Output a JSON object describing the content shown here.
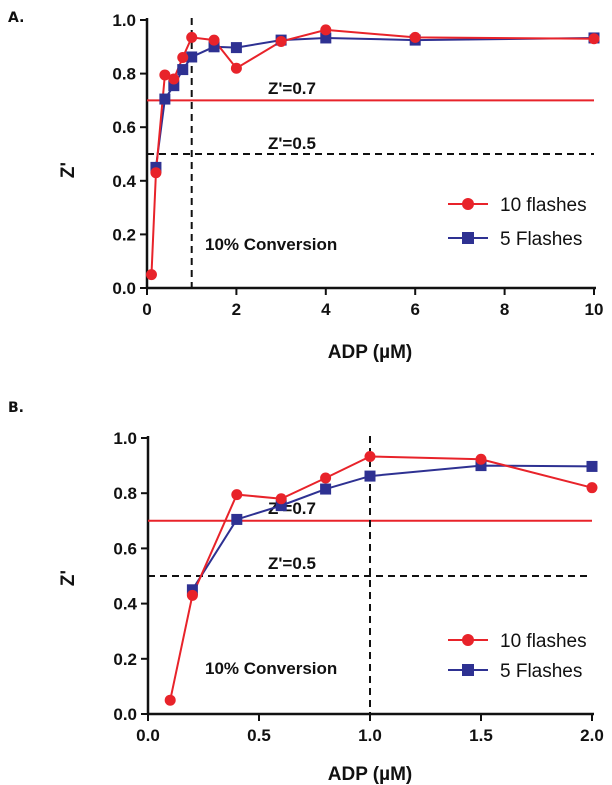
{
  "colors": {
    "series_red": "#e8232a",
    "series_blue": "#2e3192",
    "axis": "#111111",
    "dashed": "#111111"
  },
  "panels": [
    {
      "letter": "A."
    },
    {
      "letter": "B."
    }
  ],
  "chart_data": [
    {
      "type": "line",
      "panel": "A.",
      "xlabel": "ADP (µM)",
      "ylabel": "Z'",
      "xlim": [
        0,
        10
      ],
      "ylim": [
        0,
        1.0
      ],
      "x_ticks": [
        0,
        2,
        4,
        6,
        8,
        10
      ],
      "x_tick_labels": [
        "0",
        "2",
        "4",
        "6",
        "8",
        "10"
      ],
      "y_ticks": [
        0,
        0.2,
        0.4,
        0.6,
        0.8,
        1.0
      ],
      "y_tick_labels": [
        "0.0",
        "0.2",
        "0.4",
        "0.6",
        "0.8",
        "1.0"
      ],
      "grid": false,
      "legend_position": "right",
      "series": [
        {
          "name": "10 flashes",
          "marker": "circle",
          "x": [
            0.1,
            0.2,
            0.4,
            0.6,
            0.8,
            1.0,
            1.5,
            2.0,
            3.0,
            4.0,
            6.0,
            10.0
          ],
          "y": [
            0.05,
            0.43,
            0.795,
            0.78,
            0.86,
            0.935,
            0.925,
            0.82,
            0.92,
            0.963,
            0.935,
            0.93
          ]
        },
        {
          "name": "5 Flashes",
          "marker": "square",
          "x": [
            0.2,
            0.4,
            0.6,
            0.8,
            1.0,
            1.5,
            2.0,
            3.0,
            4.0,
            6.0,
            10.0
          ],
          "y": [
            0.45,
            0.705,
            0.755,
            0.815,
            0.862,
            0.9,
            0.897,
            0.925,
            0.933,
            0.925,
            0.933
          ]
        }
      ],
      "hlines": [
        {
          "y": 0.7,
          "label": "Z'=0.7",
          "style": "solid-red"
        },
        {
          "y": 0.5,
          "label": "Z'=0.5",
          "style": "dashed"
        }
      ],
      "vline": {
        "x": 1.0,
        "label": "10% Conversion",
        "style": "dashed"
      }
    },
    {
      "type": "line",
      "panel": "B.",
      "xlabel": "ADP (µM)",
      "ylabel": "Z'",
      "xlim": [
        0,
        2.0
      ],
      "ylim": [
        0,
        1.0
      ],
      "x_ticks": [
        0,
        0.5,
        1.0,
        1.5,
        2.0
      ],
      "x_tick_labels": [
        "0.0",
        "0.5",
        "1.0",
        "1.5",
        "2.0"
      ],
      "y_ticks": [
        0,
        0.2,
        0.4,
        0.6,
        0.8,
        1.0
      ],
      "y_tick_labels": [
        "0.0",
        "0.2",
        "0.4",
        "0.6",
        "0.8",
        "1.0"
      ],
      "grid": false,
      "legend_position": "bottom-right",
      "series": [
        {
          "name": "10 flashes",
          "marker": "circle",
          "x": [
            0.1,
            0.2,
            0.4,
            0.6,
            0.8,
            1.0,
            1.5,
            2.0
          ],
          "y": [
            0.05,
            0.43,
            0.795,
            0.78,
            0.855,
            0.933,
            0.923,
            0.82
          ]
        },
        {
          "name": "5 Flashes",
          "marker": "square",
          "x": [
            0.2,
            0.4,
            0.6,
            0.8,
            1.0,
            1.5,
            2.0
          ],
          "y": [
            0.45,
            0.705,
            0.755,
            0.815,
            0.862,
            0.9,
            0.897
          ]
        }
      ],
      "hlines": [
        {
          "y": 0.7,
          "label": "Z'=0.7",
          "style": "solid-red"
        },
        {
          "y": 0.5,
          "label": "Z'=0.5",
          "style": "dashed"
        }
      ],
      "vline": {
        "x": 1.0,
        "label": "10% Conversion",
        "style": "dashed"
      }
    }
  ]
}
